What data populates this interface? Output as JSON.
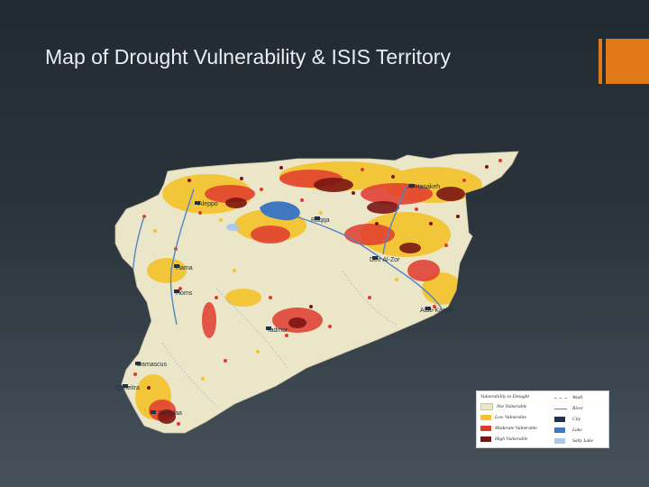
{
  "slide": {
    "title": "Map of Drought Vulnerability & ISIS Territory"
  },
  "colors": {
    "background_top": "#222a31",
    "background_bottom": "#47525c",
    "title_text": "#e9edf0",
    "accent": "#e07a16",
    "not_vulnerable": "#ece6c9",
    "low_vulnerable": "#f4c22a",
    "moderate_vulnerable": "#e03a2e",
    "high_vulnerable": "#7c1614",
    "river": "#4f86c6",
    "lake": "#3f78c0"
  },
  "map": {
    "cities": [
      {
        "name": "Aleppo"
      },
      {
        "name": "Hama"
      },
      {
        "name": "Homs"
      },
      {
        "name": "Tadmor"
      },
      {
        "name": "Damascus"
      },
      {
        "name": "Quneitra"
      },
      {
        "name": "Sweidaa"
      },
      {
        "name": "Raqqa"
      },
      {
        "name": "Deir Al-Zor"
      },
      {
        "name": "Albo-Kamal"
      },
      {
        "name": "Al-Hasakeh"
      }
    ]
  },
  "legend": {
    "title": "Vulnerability to Drought",
    "classes": [
      {
        "label": "Not Vulnerable",
        "color": "#ece6c9"
      },
      {
        "label": "Low Vulnerable",
        "color": "#f4c22a"
      },
      {
        "label": "Moderate Vulnerable",
        "color": "#e03a2e"
      },
      {
        "label": "High Vulnerable",
        "color": "#7c1614"
      }
    ],
    "features": [
      {
        "label": "Wadi",
        "style": "dashed",
        "color": "#8fa8c8"
      },
      {
        "label": "River",
        "style": "line",
        "color": "#4f86c6"
      },
      {
        "label": "City",
        "style": "fill",
        "color": "#1f3350"
      },
      {
        "label": "Lake",
        "style": "fill",
        "color": "#3f78c0"
      },
      {
        "label": "Salty Lake",
        "style": "fill",
        "color": "#a9c8ea"
      }
    ]
  }
}
